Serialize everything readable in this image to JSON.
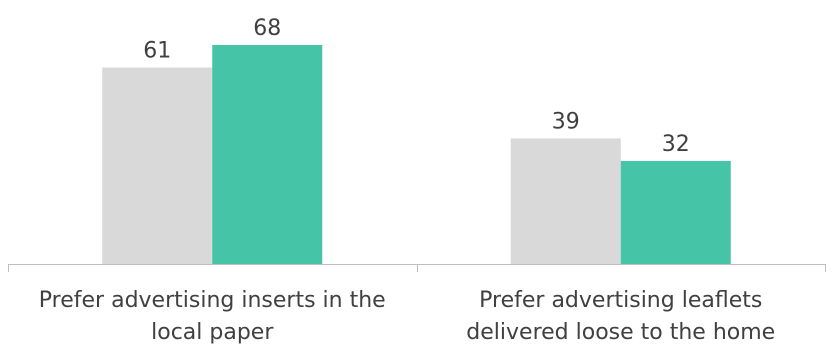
{
  "chart_data": {
    "type": "bar",
    "categories": [
      [
        "Prefer advertising inserts in the",
        "local paper"
      ],
      [
        "Prefer advertising leaflets",
        "delivered loose to the home"
      ]
    ],
    "series": [
      {
        "values": [
          61,
          39
        ],
        "color": "#d9d9d9"
      },
      {
        "values": [
          68,
          32
        ],
        "color": "#45c4a8"
      }
    ],
    "ylim": [
      0,
      68
    ],
    "grid": false,
    "legend": "none",
    "title": "",
    "xlabel": "",
    "ylabel": ""
  },
  "colors": {
    "axis": "#bfbfbf",
    "text": "#404040"
  }
}
